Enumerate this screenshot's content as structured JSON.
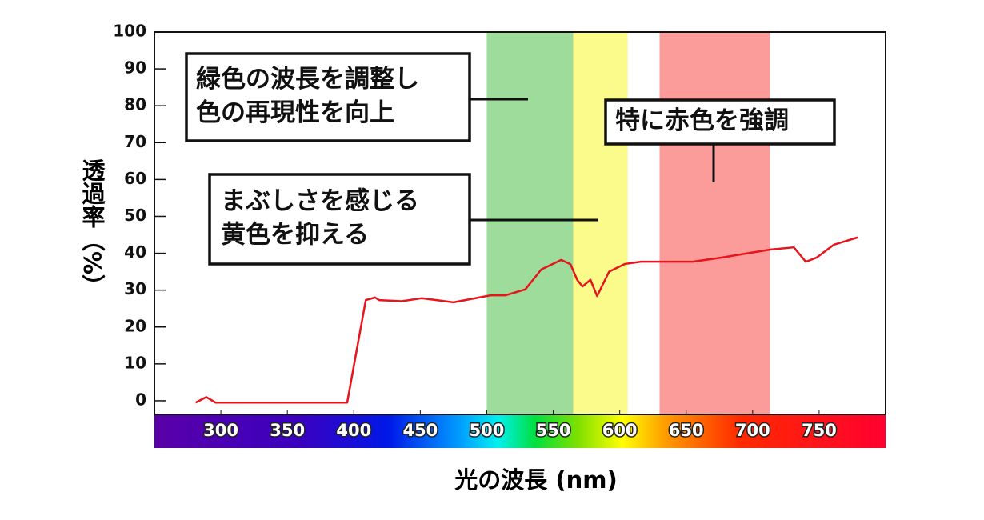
{
  "chart_data": {
    "type": "line",
    "x_label": "光の波長 (nm)",
    "y_label": "透過率（%）",
    "xlim": [
      250,
      800
    ],
    "ylim": [
      -3.7,
      100
    ],
    "xticks": [
      300,
      350,
      400,
      450,
      500,
      550,
      600,
      650,
      700,
      750
    ],
    "yticks": [
      0,
      10,
      20,
      30,
      40,
      50,
      60,
      70,
      80,
      90,
      100
    ],
    "x": [
      281,
      289,
      296,
      395,
      409,
      416,
      419,
      436,
      451,
      475,
      503,
      514,
      529,
      541,
      556,
      563,
      568,
      572,
      578,
      583,
      592,
      604,
      616,
      655,
      676,
      713,
      731,
      740,
      748,
      761,
      779
    ],
    "series": [
      {
        "color": "#e8141c",
        "values": [
          -0.5,
          1,
          -0.5,
          -0.5,
          27.3,
          28,
          27.3,
          27,
          27.8,
          26.7,
          28.6,
          28.6,
          30.2,
          35.6,
          38.2,
          37,
          32.8,
          31,
          32.8,
          28.4,
          35,
          37.1,
          37.7,
          37.7,
          38.8,
          41,
          41.6,
          37.7,
          38.8,
          42.3,
          44.3
        ]
      }
    ],
    "bands": [
      {
        "from": 500,
        "to": 565,
        "color": "#9ddc9a"
      },
      {
        "from": 565,
        "to": 606,
        "color": "#fbfb8c"
      },
      {
        "from": 630,
        "to": 713,
        "color": "#fc9c9a"
      }
    ],
    "annotations": [
      {
        "lines": [
          "緑色の波長を調整し",
          "色の再現性を向上"
        ]
      },
      {
        "lines": [
          "まぶしさを感じる",
          "黄色を抑える"
        ]
      },
      {
        "lines": [
          "特に赤色を強調"
        ]
      }
    ]
  }
}
